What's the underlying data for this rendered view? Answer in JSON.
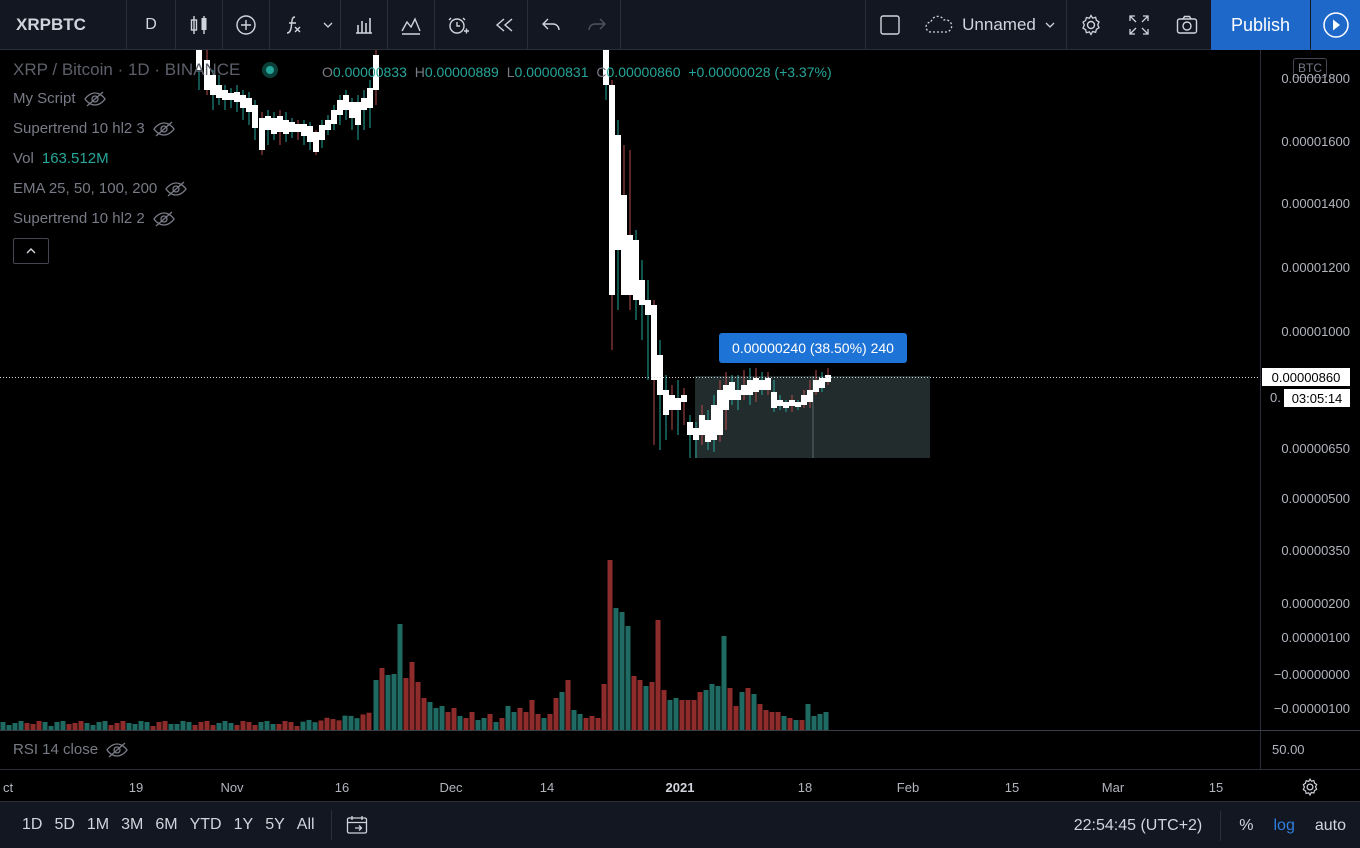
{
  "toolbar": {
    "symbol": "XRPBTC",
    "interval": "D",
    "icons": [
      "candles-icon",
      "add-compare-icon",
      "indicators-icon",
      "dropdown-icon",
      "financials-icon",
      "templates-icon",
      "alert-icon",
      "replay-icon",
      "undo-icon",
      "redo-icon"
    ],
    "layout_name": "Unnamed",
    "publish_label": "Publish"
  },
  "legend": {
    "title": "XRP / Bitcoin · 1D · BINANCE",
    "ohlc": {
      "o_label": "O",
      "o": "0.00000833",
      "h_label": "H",
      "h": "0.00000889",
      "l_label": "L",
      "l": "0.00000831",
      "c_label": "C",
      "c": "0.00000860",
      "change": "+0.00000028 (+3.37%)"
    },
    "indicators": [
      {
        "name": "My Script",
        "value": ""
      },
      {
        "name": "Supertrend 10 hl2 3",
        "value": ""
      },
      {
        "name": "Vol",
        "value": "163.512M"
      },
      {
        "name": "EMA 25, 50, 100, 200",
        "value": ""
      },
      {
        "name": "Supertrend 10 hl2 2",
        "value": ""
      }
    ]
  },
  "measure_tooltip": "0.00000240 (38.50%) 240",
  "price_axis": {
    "currency": "BTC",
    "labels": [
      "0.00001800",
      "0.00001600",
      "0.00001400",
      "0.00001200",
      "0.00001000",
      "0.00000650",
      "0.00000500",
      "0.00000350",
      "0.00000200",
      "0.00000100",
      "−0.00000000",
      "−0.00000100"
    ],
    "current_price": "0.00000860",
    "countdown": "03:05:14",
    "countdown_prefix": "0."
  },
  "rsi": {
    "label": "RSI 14 close",
    "value": "50.00"
  },
  "time_axis": [
    "ct",
    "19",
    "Nov",
    "16",
    "Dec",
    "14",
    "2021",
    "18",
    "Feb",
    "15",
    "Mar",
    "15"
  ],
  "bottombar": {
    "ranges": [
      "1D",
      "5D",
      "1M",
      "3M",
      "6M",
      "YTD",
      "1Y",
      "5Y",
      "All"
    ],
    "clock": "22:54:45 (UTC+2)",
    "percent": "%",
    "log": "log",
    "auto": "auto"
  },
  "colors": {
    "up": "#ffffff",
    "down": "#ffffff",
    "vol_up": "#1f6b63",
    "vol_down": "#8e2b2b",
    "accent": "#1e73d6"
  }
}
